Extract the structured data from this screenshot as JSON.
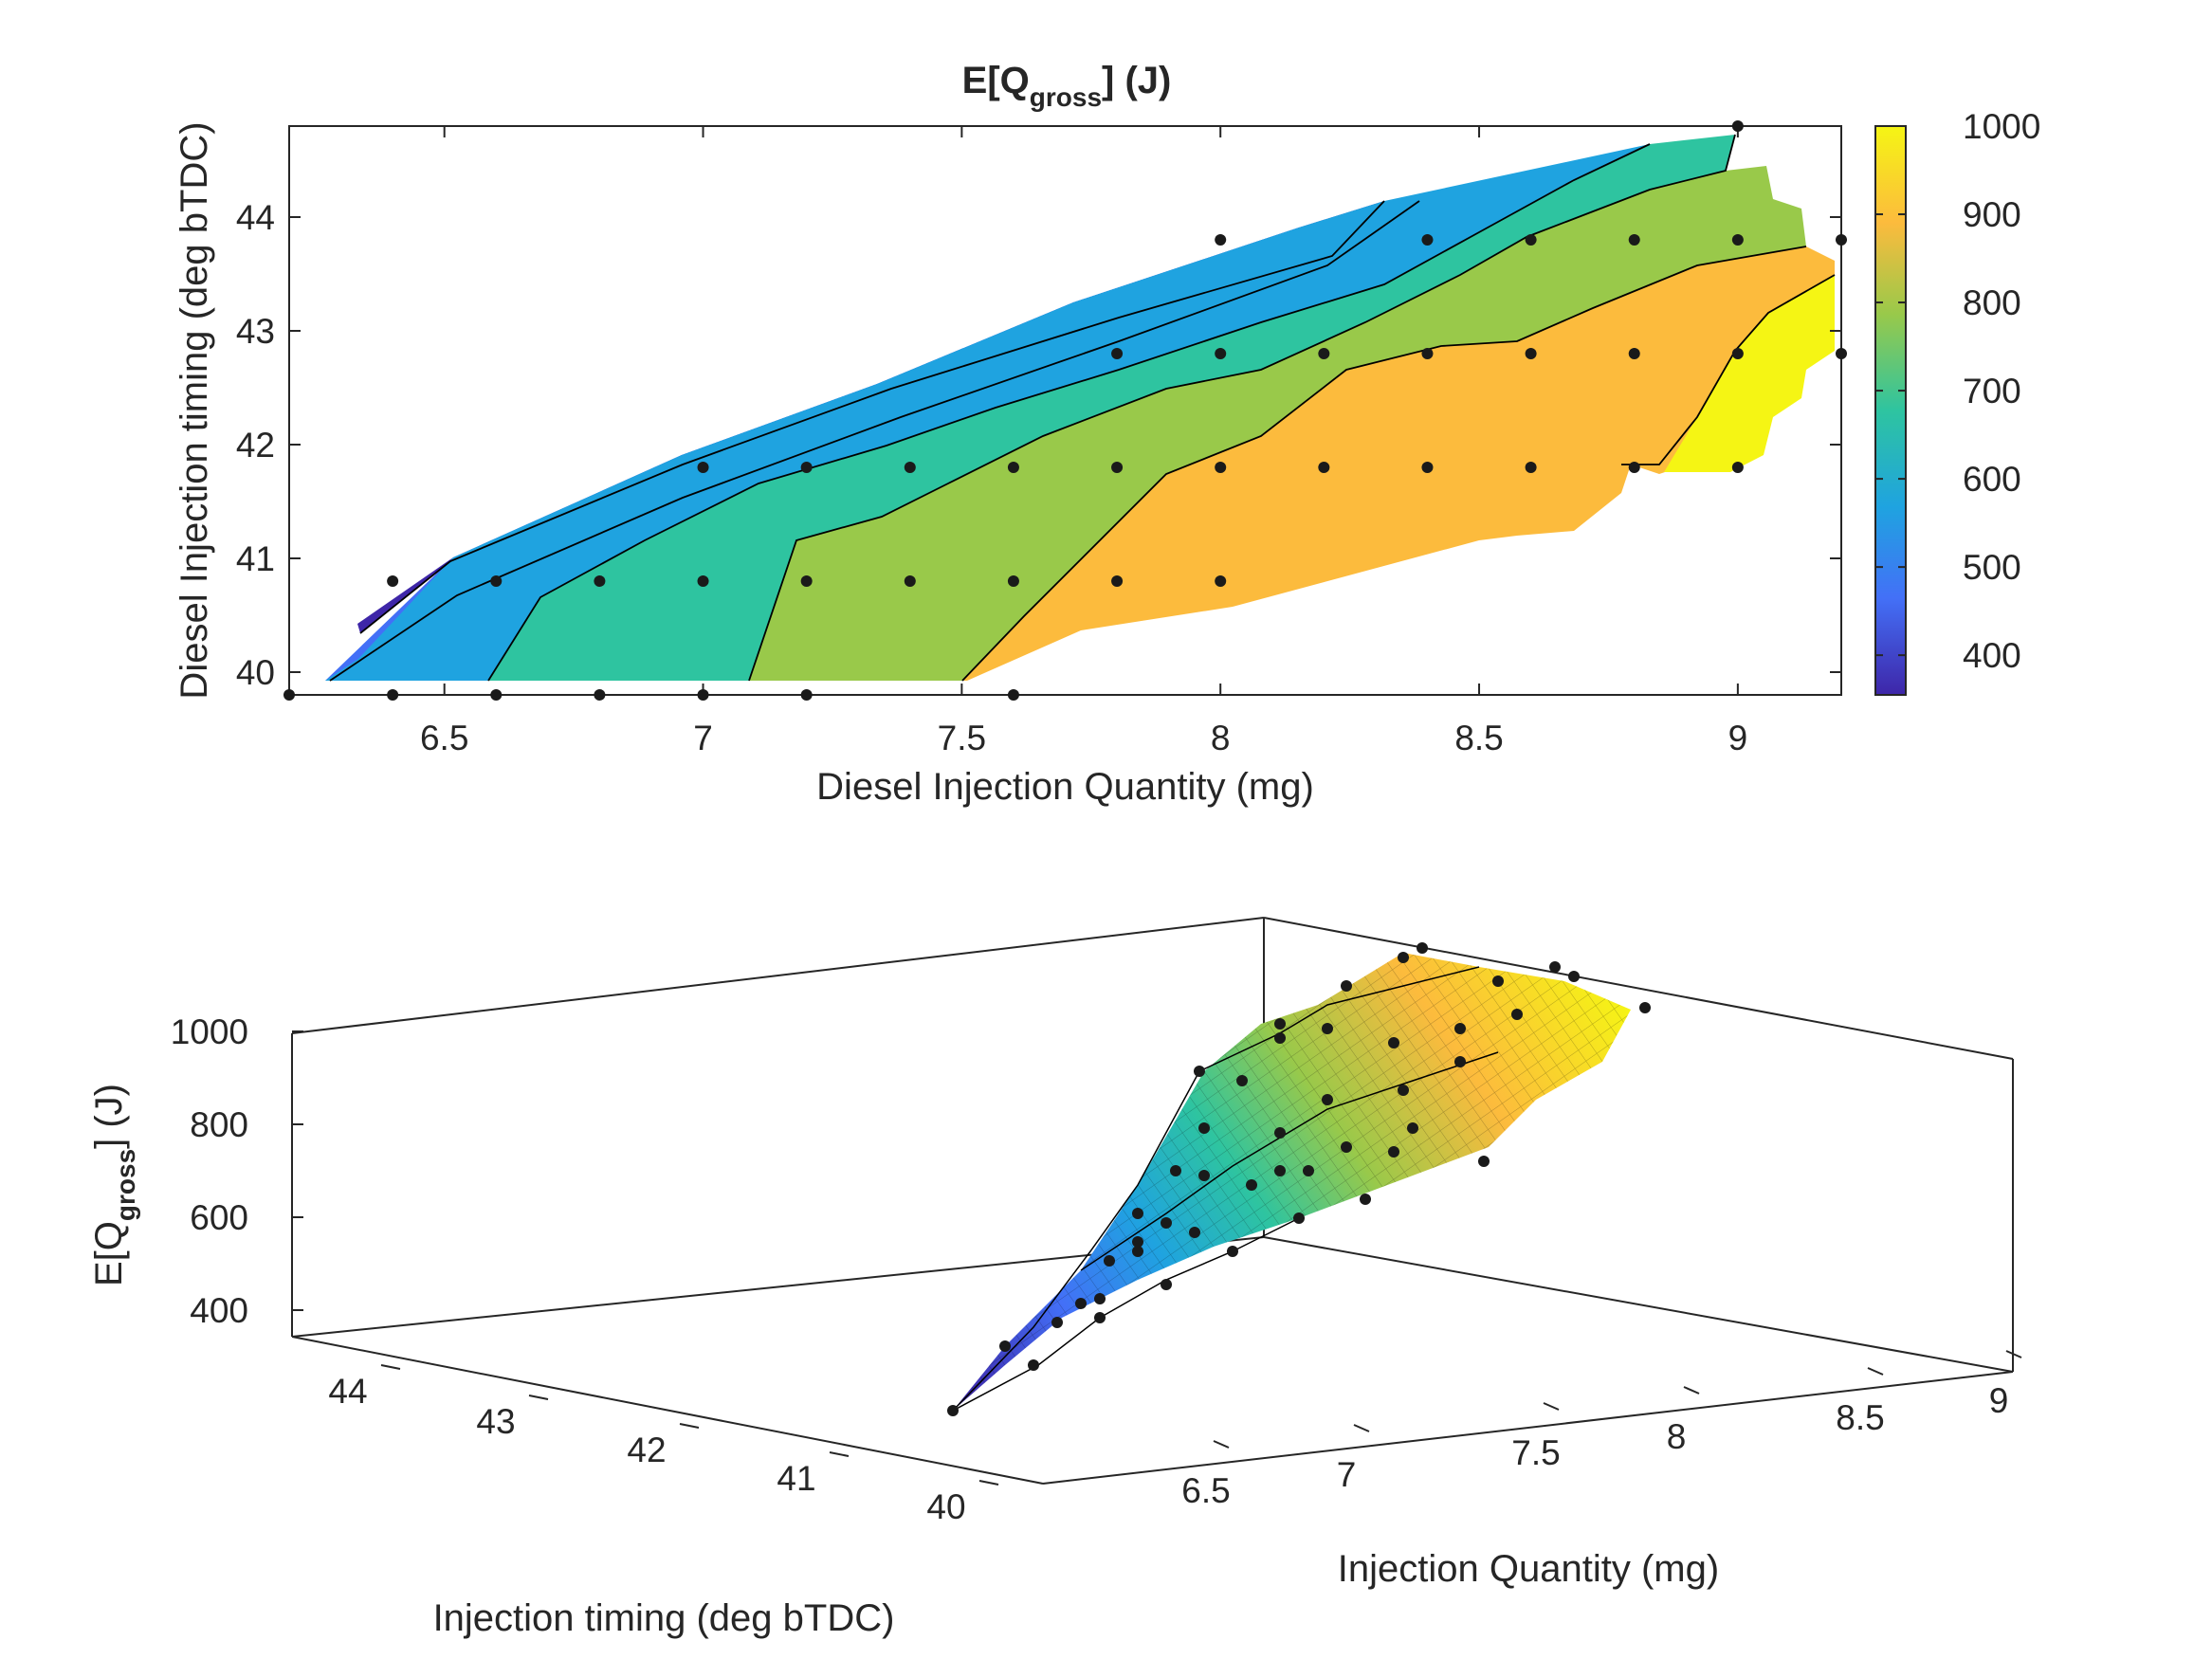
{
  "chart_data": [
    {
      "type": "contour",
      "title": {
        "prefix": "E[Q",
        "subscript": "gross",
        "suffix": "] (J)"
      },
      "xlabel": "Diesel Injection Quantity (mg)",
      "ylabel": "Diesel Injection timing (deg bTDC)",
      "xlim": [
        6.2,
        9.2
      ],
      "ylim": [
        39.8,
        44.8
      ],
      "xticks": [
        "6.5",
        "7",
        "7.5",
        "8",
        "8.5",
        "9"
      ],
      "yticks": [
        "40",
        "41",
        "42",
        "43",
        "44"
      ],
      "colorbar": {
        "ticks": [
          "400",
          "500",
          "600",
          "700",
          "800",
          "900",
          "1000"
        ],
        "range": [
          355,
          1000
        ]
      },
      "levels": [
        {
          "value": 400,
          "color": "#3e26a8"
        },
        {
          "value": 500,
          "color": "#4370f7"
        },
        {
          "value": 600,
          "color": "#1fa3e0"
        },
        {
          "value": 700,
          "color": "#2ec4a0"
        },
        {
          "value": 800,
          "color": "#99c94a"
        },
        {
          "value": 900,
          "color": "#fcbb3d"
        },
        {
          "value": 1000,
          "color": "#f5f514"
        }
      ],
      "measurement_points": [
        [
          6.2,
          39.8
        ],
        [
          6.4,
          39.8
        ],
        [
          6.6,
          39.8
        ],
        [
          6.8,
          39.8
        ],
        [
          7.0,
          39.8
        ],
        [
          7.2,
          39.8
        ],
        [
          7.6,
          39.8
        ],
        [
          6.4,
          40.8
        ],
        [
          6.6,
          40.8
        ],
        [
          6.8,
          40.8
        ],
        [
          7.0,
          40.8
        ],
        [
          7.2,
          40.8
        ],
        [
          7.4,
          40.8
        ],
        [
          7.6,
          40.8
        ],
        [
          7.8,
          40.8
        ],
        [
          8.0,
          40.8
        ],
        [
          7.0,
          41.8
        ],
        [
          7.2,
          41.8
        ],
        [
          7.4,
          41.8
        ],
        [
          7.6,
          41.8
        ],
        [
          7.8,
          41.8
        ],
        [
          8.0,
          41.8
        ],
        [
          8.2,
          41.8
        ],
        [
          8.4,
          41.8
        ],
        [
          8.6,
          41.8
        ],
        [
          8.8,
          41.8
        ],
        [
          9.0,
          41.8
        ],
        [
          7.8,
          42.8
        ],
        [
          8.0,
          42.8
        ],
        [
          8.2,
          42.8
        ],
        [
          8.4,
          42.8
        ],
        [
          8.6,
          42.8
        ],
        [
          8.8,
          42.8
        ],
        [
          9.0,
          42.8
        ],
        [
          9.2,
          42.8
        ],
        [
          8.0,
          43.8
        ],
        [
          8.4,
          43.8
        ],
        [
          8.6,
          43.8
        ],
        [
          8.8,
          43.8
        ],
        [
          9.0,
          43.8
        ],
        [
          9.2,
          43.8
        ],
        [
          9.0,
          44.8
        ]
      ]
    },
    {
      "type": "surface3d",
      "zlabel": {
        "prefix": "E[Q",
        "subscript": "gross",
        "suffix": "] (J)"
      },
      "xlabel": "Injection Quantity (mg)",
      "ylabel": "Injection timing (deg bTDC)",
      "zticks": [
        "400",
        "600",
        "800",
        "1000"
      ],
      "xticks": [
        "6.5",
        "7",
        "7.5",
        "8",
        "8.5",
        "9"
      ],
      "yticks": [
        "44",
        "43",
        "42",
        "41",
        "40"
      ],
      "surface_colors": [
        "#3e26a8",
        "#4370f7",
        "#1fa3e0",
        "#2ec4a0",
        "#99c94a",
        "#fcbb3d",
        "#f5f514"
      ]
    }
  ]
}
